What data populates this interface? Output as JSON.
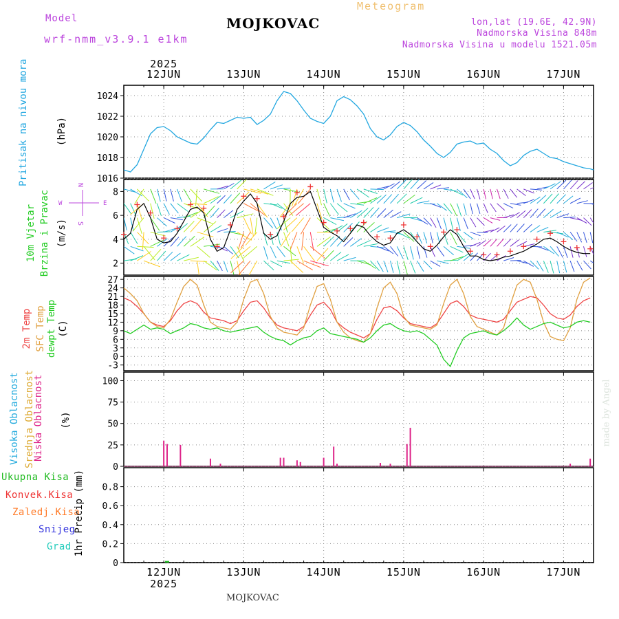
{
  "header": {
    "model_label": "Model",
    "model_name": "wrf-nmm_v3.9.1 e1km",
    "title": "MOJKOVAC",
    "subtitle": "Meteogram",
    "lonlat": "lon,lat (19.6E, 42.9N)",
    "altitude": "Nadmorska Visina 848m",
    "model_altitude": "Nadmorska Visina u modelu 1521.05m",
    "year": "2025",
    "footer_station": "MOJKOVAC",
    "credit": "made by Angel"
  },
  "colors": {
    "pressure": "#22a7e0",
    "temp2m": "#ee4444",
    "sfc_temp": "#e0a040",
    "dewpt": "#22cc22",
    "cloud_high": "#22aadd",
    "cloud_mid": "#ddaa33",
    "cloud_low": "#dd2288",
    "model_text": "#bb44dd",
    "meteogram_text": "#f0c070",
    "rain_total": "#22bb22",
    "rain_conv": "#ee3333",
    "freezing": "#ff7722",
    "snow": "#3333dd",
    "hail": "#22ccbb"
  },
  "panel_labels": {
    "pressure": [
      "Pritisak na nivou mora"
    ],
    "pressure_unit": "(hPa)",
    "wind": [
      "10m Vjetar",
      "Brzina i Pravac"
    ],
    "wind_unit": "(m/s)",
    "compass_n": "N",
    "compass_s": "S",
    "compass_w": "W",
    "compass_e": "E",
    "temp": [
      "2m Temp",
      "SFC Temp",
      "dewpt Temp"
    ],
    "temp_unit": "(C)",
    "cloud": [
      "Visoka Oblacnost",
      "Srednja Oblacnost",
      "Niska Oblacnost"
    ],
    "cloud_unit": "(%)",
    "precip_legend": [
      "Ukupna Kisa",
      "Konvek.Kisa",
      "Zaledj.Kisa",
      "Snijeg",
      "Grad"
    ],
    "precip_unit": "1hr Precip (mm)"
  },
  "chart_data": [
    {
      "type": "line",
      "name": "pressure",
      "x_range": [
        0,
        141
      ],
      "ylim": [
        1016,
        1025
      ],
      "yticks": [
        1016,
        1018,
        1020,
        1022,
        1024
      ],
      "x_ticklabels": [
        "12JUN",
        "13JUN",
        "14JUN",
        "15JUN",
        "16JUN",
        "17JUN"
      ],
      "x_tick_hours": [
        12,
        36,
        60,
        84,
        108,
        132
      ],
      "grid": true,
      "series": [
        {
          "x": [
            0,
            2,
            4,
            6,
            8,
            10,
            12,
            14,
            16,
            18,
            20,
            22,
            24,
            26,
            28,
            30,
            32,
            34,
            36,
            38,
            40,
            42,
            44,
            46,
            48,
            50,
            52,
            54,
            56,
            58,
            60,
            62,
            64,
            66,
            68,
            70,
            72,
            74,
            76,
            78,
            80,
            82,
            84,
            86,
            88,
            90,
            92,
            94,
            96,
            98,
            100,
            102,
            104,
            106,
            108,
            110,
            112,
            114,
            116,
            118,
            120,
            122,
            124,
            126,
            128,
            130,
            132,
            134,
            136,
            138,
            140,
            141
          ],
          "values": [
            1016.8,
            1016.6,
            1017.3,
            1018.8,
            1020.3,
            1020.9,
            1021.0,
            1020.6,
            1020.0,
            1019.7,
            1019.4,
            1019.3,
            1019.9,
            1020.7,
            1021.4,
            1021.3,
            1021.6,
            1021.9,
            1021.8,
            1021.9,
            1021.2,
            1021.6,
            1022.2,
            1023.5,
            1024.4,
            1024.2,
            1023.5,
            1022.6,
            1021.8,
            1021.5,
            1021.3,
            1022.0,
            1023.5,
            1023.9,
            1023.6,
            1023.0,
            1022.2,
            1020.8,
            1020.0,
            1019.7,
            1020.2,
            1021.0,
            1021.4,
            1021.1,
            1020.5,
            1019.7,
            1019.1,
            1018.4,
            1018.0,
            1018.5,
            1019.3,
            1019.5,
            1019.6,
            1019.3,
            1019.4,
            1018.8,
            1018.4,
            1017.7,
            1017.2,
            1017.5,
            1018.2,
            1018.6,
            1018.8,
            1018.4,
            1018.0,
            1017.9,
            1017.6,
            1017.4,
            1017.2,
            1017.0,
            1016.9,
            1016.8
          ]
        }
      ]
    },
    {
      "type": "line",
      "name": "wind",
      "x_range": [
        0,
        141
      ],
      "ylim": [
        1,
        9
      ],
      "yticks": [
        2,
        4,
        6,
        8
      ],
      "grid": true,
      "series": [
        {
          "kind": "speed",
          "x": [
            0,
            2,
            4,
            6,
            8,
            10,
            12,
            14,
            16,
            18,
            20,
            22,
            24,
            26,
            28,
            30,
            32,
            34,
            36,
            38,
            40,
            42,
            44,
            46,
            48,
            50,
            52,
            54,
            56,
            58,
            60,
            62,
            64,
            66,
            68,
            70,
            72,
            74,
            76,
            78,
            80,
            82,
            84,
            86,
            88,
            90,
            92,
            94,
            96,
            98,
            100,
            102,
            104,
            106,
            108,
            110,
            112,
            114,
            116,
            118,
            120,
            122,
            124,
            126,
            128,
            130,
            132,
            134,
            136,
            138,
            140
          ],
          "values": [
            4.0,
            4.5,
            6.5,
            7.0,
            5.8,
            4.0,
            3.7,
            3.8,
            4.5,
            5.5,
            6.5,
            6.7,
            6.2,
            4.0,
            3.0,
            3.3,
            4.8,
            6.5,
            7.2,
            7.8,
            7.0,
            4.5,
            4.0,
            4.3,
            5.5,
            7.0,
            7.5,
            7.6,
            8.0,
            6.5,
            5.0,
            4.6,
            4.3,
            3.8,
            4.5,
            5.2,
            5.0,
            4.3,
            3.8,
            3.5,
            3.7,
            4.5,
            4.8,
            4.4,
            3.8,
            3.2,
            3.0,
            3.5,
            4.2,
            4.8,
            4.4,
            3.4,
            2.6,
            2.6,
            2.3,
            2.2,
            2.3,
            2.5,
            2.6,
            2.8,
            3.0,
            3.3,
            3.6,
            4.0,
            4.1,
            3.8,
            3.4,
            3.1,
            2.9,
            2.8,
            2.8
          ]
        }
      ]
    },
    {
      "type": "line",
      "name": "temperature",
      "x_range": [
        0,
        141
      ],
      "ylim": [
        -5,
        28
      ],
      "yticks": [
        -3,
        0,
        3,
        6,
        9,
        12,
        15,
        18,
        21,
        24,
        27
      ],
      "grid": true,
      "series": [
        {
          "kind": "t2m",
          "x": [
            0,
            2,
            4,
            6,
            8,
            10,
            12,
            14,
            16,
            18,
            20,
            22,
            24,
            26,
            28,
            30,
            32,
            34,
            36,
            38,
            40,
            42,
            44,
            46,
            48,
            50,
            52,
            54,
            56,
            58,
            60,
            62,
            64,
            66,
            68,
            70,
            72,
            74,
            76,
            78,
            80,
            82,
            84,
            86,
            88,
            90,
            92,
            94,
            96,
            98,
            100,
            102,
            104,
            106,
            108,
            110,
            112,
            114,
            116,
            118,
            120,
            122,
            124,
            126,
            128,
            130,
            132,
            134,
            136,
            138,
            140
          ],
          "values": [
            20.5,
            19.5,
            17.5,
            15.0,
            12.0,
            11.0,
            10.5,
            12.5,
            16.0,
            18.5,
            19.5,
            18.5,
            15.5,
            13.5,
            13.0,
            12.5,
            11.5,
            12.5,
            16.0,
            19.0,
            19.5,
            17.0,
            13.5,
            11.0,
            10.0,
            9.5,
            9.0,
            10.5,
            14.5,
            18.0,
            19.0,
            16.5,
            12.0,
            10.0,
            8.5,
            7.5,
            6.5,
            8.0,
            13.0,
            17.0,
            17.5,
            16.0,
            13.5,
            11.5,
            11.0,
            10.5,
            10.0,
            11.5,
            15.0,
            18.5,
            19.5,
            17.5,
            14.5,
            13.5,
            13.0,
            12.5,
            12.0,
            13.0,
            16.0,
            19.0,
            20.0,
            21.0,
            20.5,
            18.0,
            15.0,
            13.5,
            13.0,
            14.5,
            17.5,
            19.5,
            20.5
          ]
        },
        {
          "kind": "sfc",
          "x": [
            0,
            2,
            4,
            6,
            8,
            10,
            12,
            14,
            16,
            18,
            20,
            22,
            24,
            26,
            28,
            30,
            32,
            34,
            36,
            38,
            40,
            42,
            44,
            46,
            48,
            50,
            52,
            54,
            56,
            58,
            60,
            62,
            64,
            66,
            68,
            70,
            72,
            74,
            76,
            78,
            80,
            82,
            84,
            86,
            88,
            90,
            92,
            94,
            96,
            98,
            100,
            102,
            104,
            106,
            108,
            110,
            112,
            114,
            116,
            118,
            120,
            122,
            124,
            126,
            128,
            130,
            132,
            134,
            136,
            138,
            140
          ],
          "values": [
            24.0,
            22.0,
            19.5,
            15.0,
            12.0,
            10.5,
            10.0,
            13.0,
            19.0,
            24.5,
            27.0,
            25.0,
            18.0,
            12.0,
            10.5,
            10.0,
            9.5,
            12.0,
            20.0,
            26.0,
            27.0,
            22.0,
            14.0,
            10.0,
            8.5,
            8.0,
            7.5,
            10.0,
            18.0,
            24.5,
            25.5,
            20.0,
            12.0,
            8.5,
            6.5,
            5.5,
            5.0,
            8.0,
            17.0,
            24.0,
            26.0,
            22.0,
            14.0,
            11.0,
            10.5,
            10.0,
            9.5,
            11.0,
            18.5,
            25.0,
            27.0,
            22.0,
            14.0,
            10.5,
            9.5,
            8.5,
            7.5,
            10.0,
            18.0,
            25.0,
            27.0,
            26.0,
            20.0,
            12.0,
            7.0,
            6.0,
            5.5,
            10.0,
            20.0,
            26.0,
            27.5
          ]
        },
        {
          "kind": "dewpt",
          "x": [
            0,
            2,
            4,
            6,
            8,
            10,
            12,
            14,
            16,
            18,
            20,
            22,
            24,
            26,
            28,
            30,
            32,
            34,
            36,
            38,
            40,
            42,
            44,
            46,
            48,
            50,
            52,
            54,
            56,
            58,
            60,
            62,
            64,
            66,
            68,
            70,
            72,
            74,
            76,
            78,
            80,
            82,
            84,
            86,
            88,
            90,
            92,
            94,
            96,
            98,
            100,
            102,
            104,
            106,
            108,
            110,
            112,
            114,
            116,
            118,
            120,
            122,
            124,
            126,
            128,
            130,
            132,
            134,
            136,
            138,
            140
          ],
          "values": [
            9.0,
            8.0,
            9.5,
            11.0,
            9.5,
            10.0,
            9.5,
            8.0,
            9.0,
            10.0,
            11.5,
            11.0,
            10.0,
            9.5,
            10.0,
            9.0,
            8.5,
            9.0,
            9.5,
            10.0,
            10.5,
            8.5,
            7.0,
            6.0,
            5.5,
            4.0,
            5.5,
            6.5,
            7.0,
            9.0,
            10.0,
            8.0,
            7.5,
            7.0,
            6.5,
            6.0,
            5.0,
            6.5,
            9.0,
            11.0,
            11.5,
            10.0,
            9.0,
            8.5,
            9.0,
            8.0,
            6.0,
            4.0,
            -1.0,
            -3.5,
            2.0,
            6.5,
            8.0,
            8.5,
            9.0,
            8.0,
            7.5,
            9.0,
            11.0,
            13.5,
            11.0,
            9.5,
            10.5,
            11.5,
            12.0,
            11.0,
            10.0,
            10.5,
            12.0,
            12.5,
            12.0
          ]
        }
      ]
    },
    {
      "type": "bar",
      "name": "cloud",
      "x_range": [
        0,
        141
      ],
      "ylim": [
        0,
        110
      ],
      "yticks": [
        0,
        25,
        50,
        75,
        100
      ],
      "grid": true,
      "series": [
        {
          "kind": "low",
          "x": [
            12,
            13,
            17,
            26,
            29,
            47,
            48,
            52,
            53,
            60,
            63,
            64,
            77,
            80,
            85,
            86,
            134,
            140
          ],
          "values": [
            30,
            26,
            25,
            9,
            3,
            10,
            10,
            7,
            5,
            10,
            23,
            3,
            4,
            3,
            26,
            45,
            3,
            9
          ]
        }
      ]
    },
    {
      "type": "bar",
      "name": "precip",
      "x_range": [
        0,
        141
      ],
      "ylim": [
        0,
        1.0
      ],
      "yticks": [
        0,
        0.2,
        0.4,
        0.6,
        0.8
      ],
      "grid": true,
      "series": [
        {
          "kind": "total",
          "x": [
            13
          ],
          "values": [
            0.01
          ]
        }
      ]
    }
  ]
}
